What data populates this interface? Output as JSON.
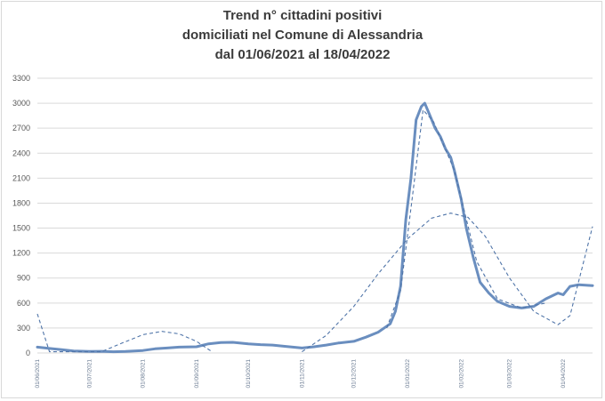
{
  "chart_data": {
    "type": "line",
    "title_lines": [
      "Trend n° cittadini positivi",
      "domiciliati nel Comune di Alessandria",
      "dal 01/06/2021 al 18/04/2022"
    ],
    "xlabel": "",
    "ylabel": "",
    "ylim": [
      0,
      3300
    ],
    "yticks": [
      0,
      300,
      600,
      900,
      1200,
      1500,
      1800,
      2100,
      2400,
      2700,
      3000,
      3300
    ],
    "xlim": [
      "2021-06-01",
      "2022-04-18"
    ],
    "xtick_labels": [
      "01/06/2021",
      "01/07/2021",
      "01/08/2021",
      "01/09/2021",
      "01/10/2021",
      "01/11/2021",
      "01/12/2021",
      "01/01/2022",
      "01/02/2022",
      "01/03/2022",
      "01/04/2022"
    ],
    "grid": "horizontal",
    "legend": "none",
    "colors": {
      "line": "#6a8ebf",
      "trend": "#4f74a8",
      "grid": "#d9d9d9",
      "title": "#3b3b3b"
    },
    "series": [
      {
        "style": "solid",
        "points": [
          [
            "2021-06-01",
            70
          ],
          [
            "2021-06-08",
            55
          ],
          [
            "2021-06-15",
            40
          ],
          [
            "2021-06-22",
            25
          ],
          [
            "2021-07-01",
            18
          ],
          [
            "2021-07-08",
            20
          ],
          [
            "2021-07-15",
            15
          ],
          [
            "2021-07-22",
            18
          ],
          [
            "2021-08-01",
            30
          ],
          [
            "2021-08-08",
            50
          ],
          [
            "2021-08-15",
            60
          ],
          [
            "2021-08-22",
            70
          ],
          [
            "2021-09-01",
            75
          ],
          [
            "2021-09-08",
            110
          ],
          [
            "2021-09-15",
            125
          ],
          [
            "2021-09-22",
            128
          ],
          [
            "2021-10-01",
            110
          ],
          [
            "2021-10-08",
            100
          ],
          [
            "2021-10-15",
            95
          ],
          [
            "2021-10-22",
            80
          ],
          [
            "2021-11-01",
            60
          ],
          [
            "2021-11-08",
            75
          ],
          [
            "2021-11-15",
            95
          ],
          [
            "2021-11-22",
            120
          ],
          [
            "2021-12-01",
            140
          ],
          [
            "2021-12-08",
            190
          ],
          [
            "2021-12-15",
            250
          ],
          [
            "2021-12-22",
            350
          ],
          [
            "2021-12-25",
            500
          ],
          [
            "2021-12-28",
            800
          ],
          [
            "2021-12-31",
            1600
          ],
          [
            "2022-01-03",
            2100
          ],
          [
            "2022-01-06",
            2800
          ],
          [
            "2022-01-09",
            2960
          ],
          [
            "2022-01-11",
            3000
          ],
          [
            "2022-01-14",
            2850
          ],
          [
            "2022-01-17",
            2700
          ],
          [
            "2022-01-20",
            2600
          ],
          [
            "2022-01-23",
            2450
          ],
          [
            "2022-01-26",
            2350
          ],
          [
            "2022-01-28",
            2200
          ],
          [
            "2022-02-01",
            1850
          ],
          [
            "2022-02-04",
            1500
          ],
          [
            "2022-02-08",
            1150
          ],
          [
            "2022-02-12",
            850
          ],
          [
            "2022-02-17",
            720
          ],
          [
            "2022-02-22",
            620
          ],
          [
            "2022-03-01",
            560
          ],
          [
            "2022-03-08",
            540
          ],
          [
            "2022-03-15",
            560
          ],
          [
            "2022-03-22",
            650
          ],
          [
            "2022-03-29",
            720
          ],
          [
            "2022-04-01",
            700
          ],
          [
            "2022-04-05",
            800
          ],
          [
            "2022-04-10",
            820
          ],
          [
            "2022-04-18",
            810
          ]
        ]
      },
      {
        "style": "dashed",
        "points": [
          [
            "2021-06-01",
            470
          ],
          [
            "2021-06-08",
            15
          ],
          [
            "2021-06-22",
            15
          ],
          [
            "2021-07-08",
            15
          ],
          [
            "2021-07-20",
            120
          ],
          [
            "2021-08-01",
            220
          ],
          [
            "2021-08-12",
            260
          ],
          [
            "2021-08-22",
            230
          ],
          [
            "2021-09-01",
            140
          ],
          [
            "2021-09-10",
            15
          ]
        ]
      },
      {
        "style": "dashed",
        "points": [
          [
            "2021-11-01",
            15
          ],
          [
            "2021-11-15",
            210
          ],
          [
            "2021-12-01",
            560
          ],
          [
            "2021-12-15",
            950
          ],
          [
            "2022-01-01",
            1370
          ],
          [
            "2022-01-15",
            1620
          ],
          [
            "2022-01-26",
            1680
          ],
          [
            "2022-02-05",
            1630
          ],
          [
            "2022-02-15",
            1400
          ],
          [
            "2022-03-01",
            900
          ],
          [
            "2022-03-15",
            500
          ],
          [
            "2022-03-29",
            340
          ],
          [
            "2022-04-05",
            450
          ],
          [
            "2022-04-18",
            1520
          ]
        ]
      },
      {
        "style": "dashed",
        "points": [
          [
            "2021-12-20",
            300
          ],
          [
            "2021-12-28",
            750
          ],
          [
            "2022-01-04",
            1900
          ],
          [
            "2022-01-10",
            2920
          ],
          [
            "2022-01-16",
            2780
          ],
          [
            "2022-01-28",
            2200
          ],
          [
            "2022-02-10",
            1100
          ],
          [
            "2022-02-22",
            650
          ],
          [
            "2022-03-08",
            540
          ],
          [
            "2022-03-22",
            600
          ]
        ]
      }
    ]
  }
}
